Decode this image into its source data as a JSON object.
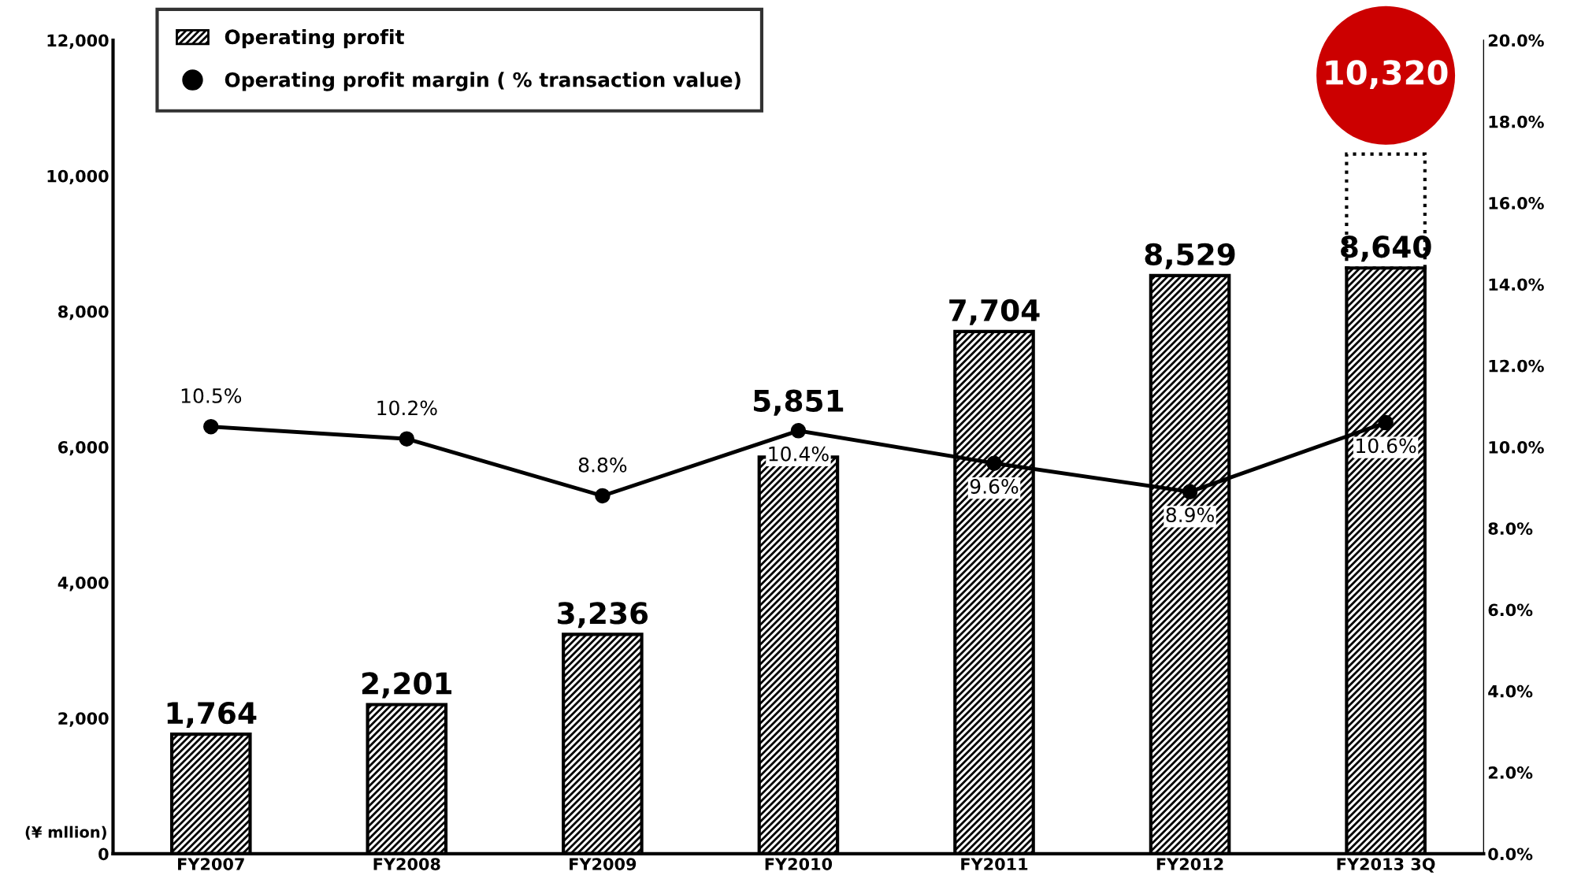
{
  "chart_data": {
    "type": "bar",
    "stacked": true,
    "categories": [
      "FY2007",
      "FY2008",
      "FY2009",
      "FY2010",
      "FY2011",
      "FY2012",
      "FY2013 3Q"
    ],
    "ylabel": "(¥ mllion)",
    "series": [
      {
        "name": "Operating profit",
        "color": "#000000",
        "values": [
          1764,
          2201,
          3236,
          5851,
          7704,
          8529,
          8640
        ],
        "value_labels": [
          "1,764",
          "2,201",
          "3,236",
          "5,851",
          "7,704",
          "8,529",
          "8,640"
        ]
      },
      {
        "color": "#000000",
        "values": [
          null,
          null,
          null,
          null,
          null,
          null,
          1680
        ],
        "line_style": "dotted"
      },
      {
        "name": "Operating profit margin ( % transaction value)",
        "type": "line",
        "axis": "y2",
        "color": "#000000",
        "marker": "circle",
        "line_style": "solid",
        "values": [
          10.5,
          10.2,
          8.8,
          10.4,
          9.6,
          8.9,
          10.6
        ],
        "value_labels": [
          "10.5%",
          "10.2%",
          "8.8%",
          "10.4%",
          "9.6%",
          "8.9%",
          "10.6%"
        ]
      }
    ],
    "totals": [
      null,
      null,
      null,
      null,
      null,
      null,
      "10,320"
    ],
    "ylim": [
      0,
      12000
    ],
    "yticks": [
      0,
      {
        "value": 2000,
        "label": "2,000"
      },
      {
        "value": 4000,
        "label": "4,000"
      },
      {
        "value": 6000,
        "label": "6,000"
      },
      {
        "value": 8000,
        "label": "8,000"
      },
      {
        "value": 10000,
        "label": "10,000"
      },
      {
        "value": 12000,
        "label": "12,000"
      }
    ],
    "y2lim": [
      0,
      20
    ],
    "y2ticks": [
      {
        "value": 0,
        "label": "0.0%"
      },
      {
        "value": 2,
        "label": "2.0%"
      },
      {
        "value": 4,
        "label": "4.0%"
      },
      {
        "value": 6,
        "label": "6.0%"
      },
      {
        "value": 8,
        "label": "8.0%"
      },
      {
        "value": 10,
        "label": "10.0%"
      },
      {
        "value": 12,
        "label": "12.0%"
      },
      {
        "value": 14,
        "label": "14.0%"
      },
      {
        "value": 16,
        "label": "16.0%"
      },
      {
        "value": 18,
        "label": "18.0%"
      },
      {
        "value": 20,
        "label": "20.0%"
      }
    ],
    "grid": false,
    "legend": "top left"
  }
}
